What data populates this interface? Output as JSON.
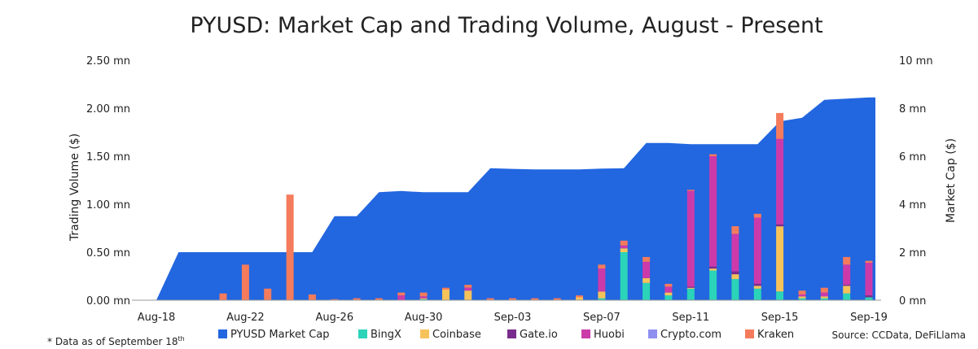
{
  "chart_data": {
    "type": "bar",
    "title": "PYUSD: Market Cap and Trading Volume, August - Present",
    "ylabel_left": "Trading Volume ($)",
    "ylabel_right": "Market Cap ($)",
    "left_axis": {
      "min": 0,
      "max": 2.5,
      "ticks": [
        0,
        0.5,
        1.0,
        1.5,
        2.0,
        2.5
      ],
      "tick_labels": [
        "0.00 mn",
        "0.50 mn",
        "1.00 mn",
        "1.50 mn",
        "2.00 mn",
        "2.50 mn"
      ]
    },
    "right_axis": {
      "min": 0,
      "max": 10,
      "ticks": [
        0,
        2,
        4,
        6,
        8,
        10
      ],
      "tick_labels": [
        "0 mn",
        "2 mn",
        "4 mn",
        "6 mn",
        "8 mn",
        "10 mn"
      ]
    },
    "x_tick_labels": [
      "Aug-18",
      "Aug-22",
      "Aug-26",
      "Aug-30",
      "Sep-03",
      "Sep-07",
      "Sep-11",
      "Sep-15",
      "Sep-19"
    ],
    "x_tick_days": [
      0,
      4,
      8,
      12,
      16,
      20,
      24,
      28,
      32
    ],
    "days": [
      "Aug-18",
      "Aug-19",
      "Aug-20",
      "Aug-21",
      "Aug-22",
      "Aug-23",
      "Aug-24",
      "Aug-25",
      "Aug-26",
      "Aug-27",
      "Aug-28",
      "Aug-29",
      "Aug-30",
      "Aug-31",
      "Sep-01",
      "Sep-02",
      "Sep-03",
      "Sep-04",
      "Sep-05",
      "Sep-06",
      "Sep-07",
      "Sep-08",
      "Sep-09",
      "Sep-10",
      "Sep-11",
      "Sep-12",
      "Sep-13",
      "Sep-14",
      "Sep-15",
      "Sep-16",
      "Sep-17",
      "Sep-18",
      "Sep-19"
    ],
    "market_cap": {
      "name": "PYUSD Market Cap",
      "color": "#2266e0",
      "points": [
        [
          "Aug-18",
          0
        ],
        [
          "Aug-19",
          2.0
        ],
        [
          "Aug-20",
          2.0
        ],
        [
          "Aug-21",
          2.0
        ],
        [
          "Aug-22",
          2.0
        ],
        [
          "Aug-23",
          2.0
        ],
        [
          "Aug-24",
          2.0
        ],
        [
          "Aug-25",
          2.0
        ],
        [
          "Aug-26",
          3.5
        ],
        [
          "Aug-27",
          3.5
        ],
        [
          "Aug-28",
          4.5
        ],
        [
          "Aug-29",
          4.55
        ],
        [
          "Aug-30",
          4.5
        ],
        [
          "Aug-31",
          4.5
        ],
        [
          "Sep-01",
          4.5
        ],
        [
          "Sep-02",
          5.5
        ],
        [
          "Sep-03",
          5.47
        ],
        [
          "Sep-04",
          5.45
        ],
        [
          "Sep-05",
          5.45
        ],
        [
          "Sep-06",
          5.45
        ],
        [
          "Sep-07",
          5.48
        ],
        [
          "Sep-08",
          5.5
        ],
        [
          "Sep-09",
          6.55
        ],
        [
          "Sep-10",
          6.55
        ],
        [
          "Sep-11",
          6.5
        ],
        [
          "Sep-12",
          6.5
        ],
        [
          "Sep-13",
          6.5
        ],
        [
          "Sep-14",
          6.5
        ],
        [
          "Sep-15",
          7.45
        ],
        [
          "Sep-16",
          7.6
        ],
        [
          "Sep-17",
          8.35
        ],
        [
          "Sep-18",
          8.4
        ],
        [
          "Sep-19",
          8.45
        ]
      ]
    },
    "series": [
      {
        "name": "BingX",
        "color": "#2bd4b8",
        "values": [
          0,
          0,
          0,
          0,
          0,
          0,
          0,
          0,
          0,
          0,
          0,
          0,
          0.01,
          0,
          0,
          0,
          0,
          0,
          0,
          0,
          0.02,
          0.5,
          0.18,
          0.05,
          0.12,
          0.31,
          0.22,
          0.12,
          0.09,
          0.02,
          0.02,
          0.07,
          0.03
        ]
      },
      {
        "name": "Coinbase",
        "color": "#f5c35a",
        "values": [
          0,
          0,
          0,
          0,
          0,
          0,
          0,
          0,
          0,
          0,
          0,
          0,
          0.01,
          0.11,
          0.1,
          0,
          0,
          0,
          0,
          0.03,
          0.07,
          0.04,
          0.05,
          0.03,
          0.01,
          0.02,
          0.05,
          0.03,
          0.68,
          0.02,
          0.02,
          0.08,
          0
        ]
      },
      {
        "name": "Gate.io",
        "color": "#7a2c8c",
        "values": [
          0,
          0,
          0,
          0,
          0,
          0,
          0,
          0,
          0,
          0,
          0,
          0,
          0,
          0,
          0,
          0,
          0,
          0,
          0,
          0,
          0,
          0,
          0,
          0,
          0.01,
          0.02,
          0.03,
          0.02,
          0.02,
          0,
          0,
          0.01,
          0.02
        ]
      },
      {
        "name": "Huobi",
        "color": "#cc3aaa",
        "values": [
          0,
          0,
          0,
          0,
          0,
          0,
          0,
          0,
          0,
          0,
          0,
          0.05,
          0.02,
          0,
          0.03,
          0,
          0,
          0,
          0,
          0,
          0.24,
          0.03,
          0.17,
          0.06,
          1.0,
          1.15,
          0.39,
          0.69,
          0.89,
          0.02,
          0.04,
          0.21,
          0.34
        ]
      },
      {
        "name": "Crypto.com",
        "color": "#8f8ff0",
        "values": [
          0,
          0,
          0,
          0,
          0,
          0,
          0,
          0,
          0,
          0,
          0,
          0,
          0,
          0,
          0,
          0,
          0,
          0,
          0,
          0,
          0,
          0,
          0,
          0,
          0,
          0,
          0,
          0,
          0,
          0,
          0,
          0,
          0
        ]
      },
      {
        "name": "Kraken",
        "color": "#f47b5c",
        "values": [
          0,
          0,
          0,
          0.07,
          0.37,
          0.12,
          1.1,
          0.06,
          0.01,
          0.02,
          0.02,
          0.03,
          0.04,
          0.02,
          0.03,
          0.02,
          0.02,
          0.02,
          0.02,
          0.02,
          0.04,
          0.05,
          0.05,
          0.03,
          0.01,
          0.02,
          0.08,
          0.04,
          0.27,
          0.04,
          0.05,
          0.08,
          0.02
        ]
      }
    ],
    "legend_placement": "bottom",
    "grid": false
  },
  "footnote": "* Data as of September 18",
  "footnote_sup": "th",
  "source": "Source: CCData, DeFiLlama"
}
